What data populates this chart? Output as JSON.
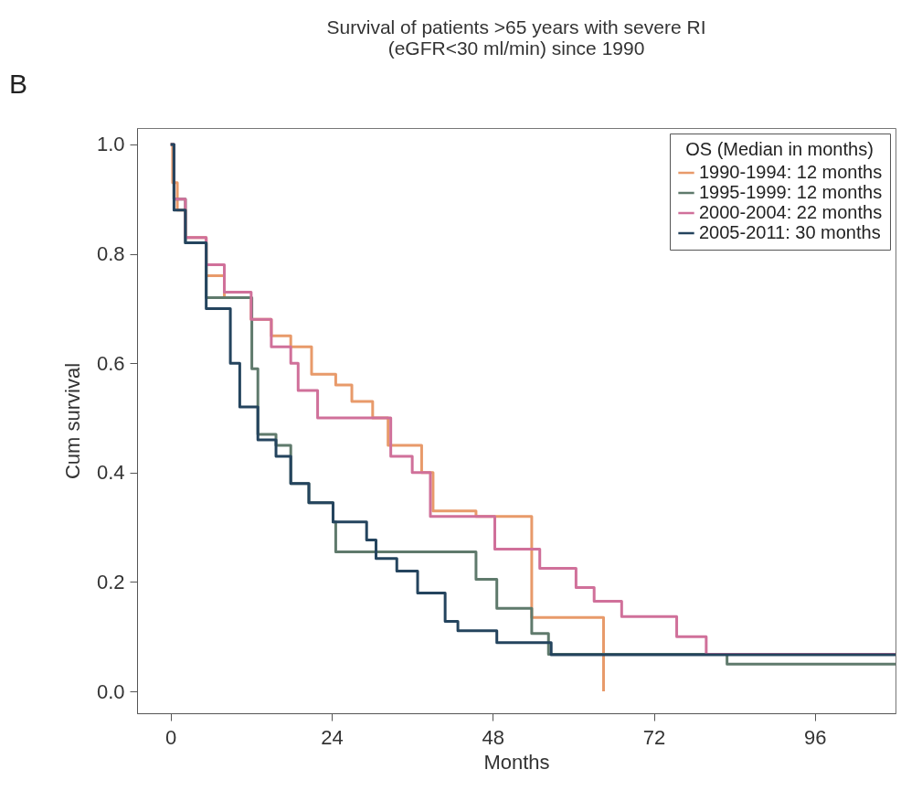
{
  "chart_data": {
    "type": "step",
    "title": [
      "Survival of patients >65 years with severe RI",
      "(eGFR<30 ml/min) since 1990"
    ],
    "xlabel": "Months",
    "ylabel": "Cum survival",
    "legend_title": "OS (Median in months)",
    "annotations": [
      "B"
    ],
    "xlim": [
      -5,
      108
    ],
    "xticks": [
      0,
      24,
      48,
      72,
      96
    ],
    "ylim": [
      -0.04,
      1.03
    ],
    "yticks": [
      {
        "value": 0,
        "label": "0.0"
      },
      0.2,
      0.4,
      0.6,
      0.8,
      {
        "value": 1,
        "label": "1.0"
      }
    ],
    "grid": false,
    "legend": "top right",
    "line_style": "solid",
    "series": [
      {
        "name": "1990-1994: 12 months",
        "color": "#e89a6a",
        "x": [
          0,
          0.3,
          1,
          2.2,
          5.3,
          8,
          12,
          15,
          17.9,
          21,
          24.6,
          27,
          30.1,
          32.4,
          37.4,
          39.1,
          45.5,
          53.8,
          64.5
        ],
        "values": [
          1.0,
          0.93,
          0.88,
          0.83,
          0.76,
          0.72,
          0.68,
          0.65,
          0.63,
          0.58,
          0.56,
          0.53,
          0.5,
          0.45,
          0.4,
          0.33,
          0.32,
          0.135,
          0.0
        ]
      },
      {
        "name": "1995-1999: 12 months",
        "color": "#5f7a6c",
        "x": [
          0,
          0.5,
          2.2,
          5.3,
          12.1,
          13,
          15.7,
          17.9,
          20.6,
          24.2,
          24.6,
          45.5,
          48.6,
          53.8,
          56.3,
          82.9,
          108
        ],
        "values": [
          1.0,
          0.9,
          0.82,
          0.72,
          0.59,
          0.47,
          0.45,
          0.38,
          0.345,
          0.31,
          0.255,
          0.205,
          0.152,
          0.106,
          0.068,
          0.05,
          0.05
        ]
      },
      {
        "name": "2000-2004: 22 months",
        "color": "#d0709a",
        "x": [
          0,
          0.5,
          2.2,
          5.3,
          8,
          12,
          15,
          17.9,
          19,
          21.9,
          30.6,
          32.8,
          36,
          38.7,
          48.3,
          55,
          60.4,
          63.1,
          67.2,
          75.4,
          79.8,
          108
        ],
        "values": [
          1.0,
          0.9,
          0.83,
          0.78,
          0.73,
          0.68,
          0.63,
          0.6,
          0.55,
          0.5,
          0.5,
          0.43,
          0.4,
          0.32,
          0.26,
          0.225,
          0.19,
          0.165,
          0.137,
          0.1,
          0.068,
          0.068
        ]
      },
      {
        "name": "2005-2011: 30 months",
        "color": "#24445e",
        "x": [
          0,
          0.5,
          2.2,
          5.3,
          8.9,
          10.3,
          13,
          15.7,
          17.9,
          20.6,
          24.2,
          29.2,
          30.6,
          33.7,
          36.8,
          40.9,
          42.8,
          48.6,
          56.7,
          108
        ],
        "values": [
          1.0,
          0.88,
          0.82,
          0.7,
          0.6,
          0.52,
          0.46,
          0.43,
          0.38,
          0.345,
          0.31,
          0.277,
          0.243,
          0.22,
          0.18,
          0.128,
          0.111,
          0.089,
          0.067,
          0.067
        ]
      }
    ]
  }
}
